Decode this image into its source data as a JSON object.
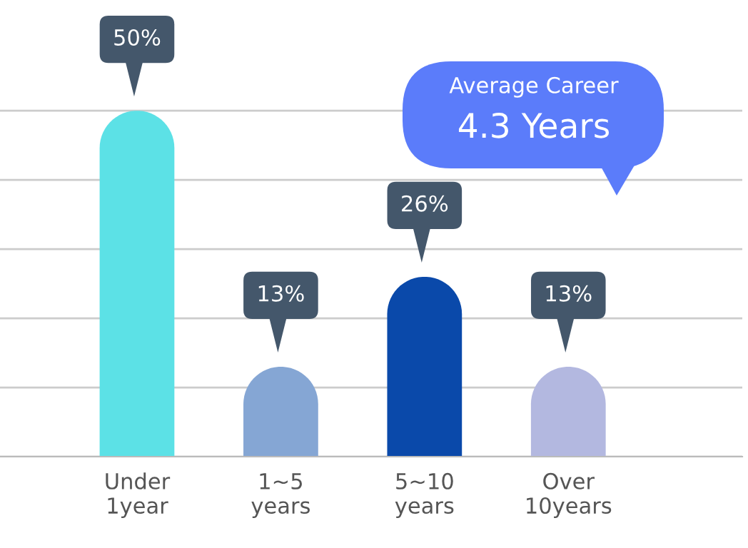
{
  "chart_data": {
    "type": "bar",
    "categories": [
      "Under\n1year",
      "1~5\nyears",
      "5~10\nyears",
      "Over\n10years"
    ],
    "values": [
      50,
      13,
      26,
      13
    ],
    "colors": [
      "#5ce1e6",
      "#85a6d4",
      "#0a49aa",
      "#b3b8e0"
    ],
    "value_labels": [
      "50%",
      "13%",
      "26%",
      "13%"
    ],
    "yticks": [
      {
        "value": 0,
        "label": null
      },
      {
        "value": 10,
        "label": null
      },
      {
        "value": 20,
        "label": null
      },
      {
        "value": 30,
        "label": null
      },
      {
        "value": 40,
        "label": null
      },
      {
        "value": 50,
        "label": null
      }
    ],
    "tick_labels": "x",
    "grid": "y",
    "annotations": [
      "Average Career",
      "4.3 Years"
    ]
  }
}
